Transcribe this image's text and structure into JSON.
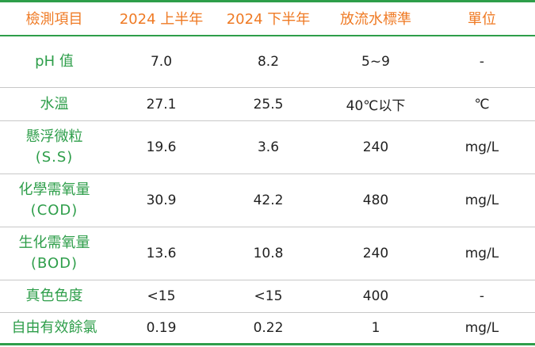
{
  "table": {
    "headers": [
      "檢測項目",
      "2024 上半年",
      "2024 下半年",
      "放流水標準",
      "單位"
    ],
    "rows": [
      {
        "item": "pH 值",
        "item_sub": "",
        "h1": "7.0",
        "h2": "8.2",
        "standard": "5~9",
        "unit": "-"
      },
      {
        "item": "水溫",
        "item_sub": "",
        "h1": "27.1",
        "h2": "25.5",
        "standard": "40℃以下",
        "unit": "℃"
      },
      {
        "item": "懸浮微粒",
        "item_sub": "(S.S)",
        "h1": "19.6",
        "h2": "3.6",
        "standard": "240",
        "unit": "mg/L"
      },
      {
        "item": "化學需氧量",
        "item_sub": "(COD)",
        "h1": "30.9",
        "h2": "42.2",
        "standard": "480",
        "unit": "mg/L"
      },
      {
        "item": "生化需氧量",
        "item_sub": "(BOD)",
        "h1": "13.6",
        "h2": "10.8",
        "standard": "240",
        "unit": "mg/L"
      },
      {
        "item": "真色色度",
        "item_sub": "",
        "h1": "<15",
        "h2": "<15",
        "standard": "400",
        "unit": "-"
      },
      {
        "item": "自由有效餘氯",
        "item_sub": "",
        "h1": "0.19",
        "h2": "0.22",
        "standard": "1",
        "unit": "mg/L"
      }
    ]
  },
  "colors": {
    "header_text": "#ef7a24",
    "item_text": "#2e9e4a",
    "rule": "#2e9e4a"
  }
}
